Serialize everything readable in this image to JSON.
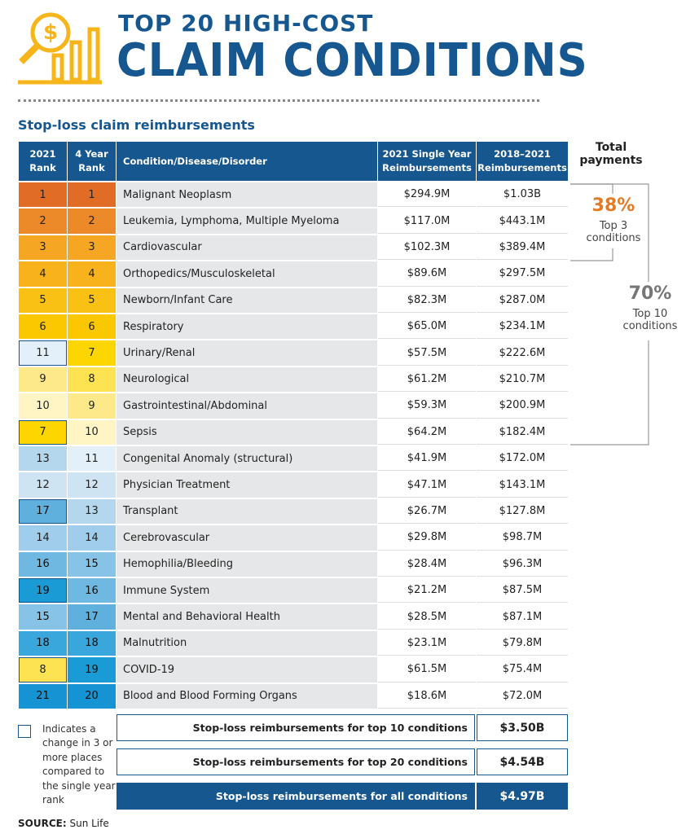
{
  "header": {
    "title_line1": "TOP 20 HIGH-COST",
    "title_line2": "CLAIM CONDITIONS",
    "subtitle": "Stop-loss claim reimbursements"
  },
  "table": {
    "columns": [
      "2021 Rank",
      "4 Year Rank",
      "Condition/Disease/Disorder",
      "2021 Single Year Reimbursements",
      "2018–2021 Reimbursements"
    ],
    "rows": [
      [
        "1",
        "1",
        "Malignant Neoplasm",
        "$294.9M",
        "$1.03B"
      ],
      [
        "2",
        "2",
        "Leukemia, Lymphoma, Multiple Myeloma",
        "$117.0M",
        "$443.1M"
      ],
      [
        "3",
        "3",
        "Cardiovascular",
        "$102.3M",
        "$389.4M"
      ],
      [
        "4",
        "4",
        "Orthopedics/Musculoskeletal",
        "$89.6M",
        "$297.5M"
      ],
      [
        "5",
        "5",
        "Newborn/Infant Care",
        "$82.3M",
        "$287.0M"
      ],
      [
        "6",
        "6",
        "Respiratory",
        "$65.0M",
        "$234.1M"
      ],
      [
        "11",
        "7",
        "Urinary/Renal",
        "$57.5M",
        "$222.6M"
      ],
      [
        "9",
        "8",
        "Neurological",
        "$61.2M",
        "$210.7M"
      ],
      [
        "10",
        "9",
        "Gastrointestinal/Abdominal",
        "$59.3M",
        "$200.9M"
      ],
      [
        "7",
        "10",
        "Sepsis",
        "$64.2M",
        "$182.4M"
      ],
      [
        "13",
        "11",
        "Congenital Anomaly (structural)",
        "$41.9M",
        "$172.0M"
      ],
      [
        "12",
        "12",
        "Physician Treatment",
        "$47.1M",
        "$143.1M"
      ],
      [
        "17",
        "13",
        "Transplant",
        "$26.7M",
        "$127.8M"
      ],
      [
        "14",
        "14",
        "Cerebrovascular",
        "$29.8M",
        "$98.7M"
      ],
      [
        "16",
        "15",
        "Hemophilia/Bleeding",
        "$28.4M",
        "$96.3M"
      ],
      [
        "19",
        "16",
        "Immune System",
        "$21.2M",
        "$87.5M"
      ],
      [
        "15",
        "17",
        "Mental and Behavioral Health",
        "$28.5M",
        "$87.1M"
      ],
      [
        "18",
        "18",
        "Malnutrition",
        "$23.1M",
        "$79.8M"
      ],
      [
        "8",
        "19",
        "COVID-19",
        "$61.5M",
        "$75.4M"
      ],
      [
        "21",
        "20",
        "Blood and Blood Forming Organs",
        "$18.6M",
        "$72.0M"
      ]
    ]
  },
  "side": {
    "heading": "Total payments",
    "top3_pct": "38%",
    "top3_label": "Top 3 conditions",
    "top10_pct": "70%",
    "top10_label": "Top 10 conditions"
  },
  "summary": [
    {
      "label": "Stop-loss reimbursements for top 10 conditions",
      "value": "$3.50B"
    },
    {
      "label": "Stop-loss reimbursements for top 20 conditions",
      "value": "$4.54B"
    },
    {
      "label": "Stop-loss reimbursements for all conditions",
      "value": "$4.97B"
    }
  ],
  "legend_note": "Indicates a change in 3 or more places compared to the single year rank",
  "source": {
    "label": "SOURCE:",
    "text": "Sun Life"
  }
}
